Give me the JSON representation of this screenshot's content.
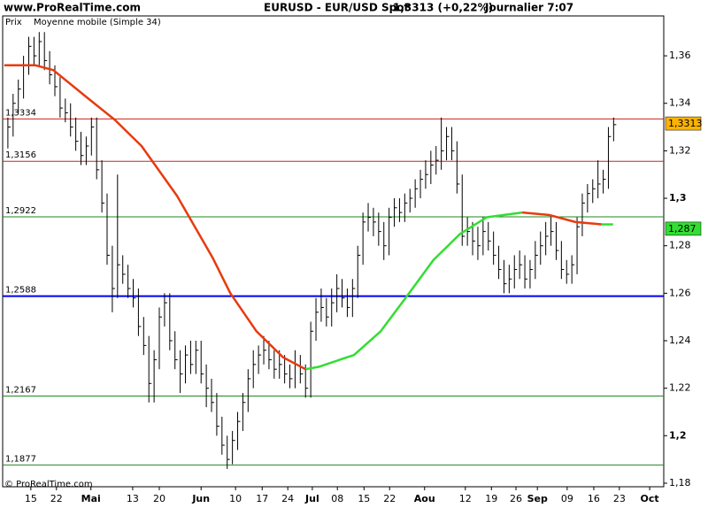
{
  "chart_data": {
    "type": "hlc",
    "site": "www.ProRealTime.com",
    "symbol": "EURUSD - EUR/USD Spot",
    "quote": "1,3313 (+0,22%)",
    "period": "Journalier  7:07",
    "price_label": "Prix",
    "copyright": "© ProRealTime.com",
    "color": "#000000",
    "x": [
      1,
      2,
      3,
      4,
      5,
      6,
      7,
      8,
      9,
      10,
      11,
      12,
      13,
      14,
      15,
      16,
      17,
      18,
      19,
      20,
      21,
      22,
      23,
      24,
      25,
      26,
      27,
      28,
      29,
      30,
      31,
      32,
      33,
      34,
      35,
      36,
      37,
      38,
      39,
      40,
      41,
      42,
      43,
      44,
      45,
      46,
      47,
      48,
      49,
      50,
      51,
      52,
      53,
      54,
      55,
      56,
      57,
      58,
      59,
      60,
      61,
      62,
      63,
      64,
      65,
      66,
      67,
      68,
      69,
      70,
      71,
      72,
      73,
      74,
      75,
      76,
      77,
      78,
      79,
      80,
      81,
      82,
      83,
      84,
      85,
      86,
      87,
      88,
      89,
      90,
      91,
      92,
      93,
      94,
      95,
      96,
      97,
      98,
      99,
      100,
      101,
      102,
      103,
      104,
      105,
      106,
      107,
      108,
      109,
      110,
      111,
      112,
      113,
      114,
      115,
      116,
      117
    ],
    "high": [
      1.334,
      1.344,
      1.35,
      1.36,
      1.368,
      1.368,
      1.37,
      1.37,
      1.362,
      1.356,
      1.351,
      1.342,
      1.34,
      1.334,
      1.328,
      1.326,
      1.334,
      1.334,
      1.316,
      1.302,
      1.28,
      1.31,
      1.276,
      1.272,
      1.266,
      1.262,
      1.25,
      1.242,
      1.236,
      1.254,
      1.26,
      1.26,
      1.244,
      1.236,
      1.238,
      1.24,
      1.24,
      1.24,
      1.23,
      1.224,
      1.218,
      1.208,
      1.2,
      1.202,
      1.21,
      1.218,
      1.228,
      1.236,
      1.238,
      1.242,
      1.24,
      1.236,
      1.236,
      1.234,
      1.23,
      1.236,
      1.234,
      1.23,
      1.248,
      1.258,
      1.262,
      1.258,
      1.262,
      1.268,
      1.266,
      1.262,
      1.266,
      1.28,
      1.294,
      1.298,
      1.296,
      1.294,
      1.29,
      1.296,
      1.3,
      1.3,
      1.302,
      1.304,
      1.308,
      1.312,
      1.316,
      1.32,
      1.322,
      1.334,
      1.33,
      1.33,
      1.324,
      1.31,
      1.292,
      1.29,
      1.288,
      1.292,
      1.29,
      1.286,
      1.28,
      1.274,
      1.272,
      1.276,
      1.278,
      1.276,
      1.274,
      1.282,
      1.286,
      1.29,
      1.292,
      1.29,
      1.282,
      1.274,
      1.276,
      1.292,
      1.302,
      1.306,
      1.308,
      1.316,
      1.312,
      1.33,
      1.334
    ],
    "low": [
      1.321,
      1.326,
      1.336,
      1.342,
      1.352,
      1.356,
      1.356,
      1.354,
      1.348,
      1.343,
      1.334,
      1.332,
      1.326,
      1.32,
      1.314,
      1.314,
      1.318,
      1.308,
      1.294,
      1.272,
      1.252,
      1.258,
      1.264,
      1.258,
      1.254,
      1.242,
      1.234,
      1.214,
      1.214,
      1.228,
      1.246,
      1.236,
      1.228,
      1.218,
      1.222,
      1.226,
      1.226,
      1.222,
      1.212,
      1.21,
      1.2,
      1.192,
      1.186,
      1.188,
      1.194,
      1.202,
      1.21,
      1.22,
      1.226,
      1.23,
      1.228,
      1.224,
      1.224,
      1.222,
      1.22,
      1.22,
      1.222,
      1.216,
      1.216,
      1.24,
      1.248,
      1.246,
      1.246,
      1.252,
      1.254,
      1.25,
      1.25,
      1.258,
      1.272,
      1.286,
      1.284,
      1.28,
      1.274,
      1.276,
      1.288,
      1.29,
      1.29,
      1.294,
      1.296,
      1.3,
      1.304,
      1.306,
      1.31,
      1.312,
      1.316,
      1.316,
      1.302,
      1.28,
      1.28,
      1.276,
      1.274,
      1.276,
      1.278,
      1.272,
      1.266,
      1.26,
      1.26,
      1.262,
      1.266,
      1.262,
      1.262,
      1.266,
      1.272,
      1.276,
      1.28,
      1.274,
      1.266,
      1.264,
      1.264,
      1.268,
      1.284,
      1.294,
      1.298,
      1.3,
      1.302,
      1.304,
      1.324
    ],
    "close": [
      1.33,
      1.34,
      1.346,
      1.356,
      1.364,
      1.36,
      1.366,
      1.358,
      1.352,
      1.347,
      1.338,
      1.336,
      1.33,
      1.324,
      1.318,
      1.322,
      1.33,
      1.312,
      1.298,
      1.276,
      1.262,
      1.272,
      1.268,
      1.262,
      1.258,
      1.246,
      1.238,
      1.222,
      1.232,
      1.25,
      1.256,
      1.24,
      1.232,
      1.226,
      1.234,
      1.23,
      1.236,
      1.226,
      1.22,
      1.214,
      1.204,
      1.196,
      1.19,
      1.198,
      1.206,
      1.214,
      1.224,
      1.23,
      1.234,
      1.236,
      1.232,
      1.228,
      1.23,
      1.226,
      1.224,
      1.23,
      1.226,
      1.22,
      1.244,
      1.252,
      1.254,
      1.25,
      1.256,
      1.262,
      1.258,
      1.254,
      1.262,
      1.276,
      1.29,
      1.292,
      1.29,
      1.286,
      1.28,
      1.292,
      1.296,
      1.294,
      1.298,
      1.3,
      1.304,
      1.308,
      1.31,
      1.314,
      1.316,
      1.32,
      1.326,
      1.32,
      1.306,
      1.284,
      1.286,
      1.282,
      1.28,
      1.286,
      1.282,
      1.276,
      1.27,
      1.264,
      1.266,
      1.27,
      1.272,
      1.266,
      1.27,
      1.276,
      1.28,
      1.284,
      1.286,
      1.278,
      1.27,
      1.268,
      1.272,
      1.288,
      1.298,
      1.302,
      1.304,
      1.306,
      1.308,
      1.326,
      1.331
    ],
    "ma": {
      "name": "Moyenne mobile (Simple 34)",
      "name_color": "#33dd33",
      "x": [
        0.3,
        6.3,
        9.7,
        16.4,
        21.5,
        26.6,
        33.4,
        40.2,
        43.6,
        48.6,
        53.7,
        58,
        60.5,
        67.3,
        72.4,
        77.5,
        82.5,
        87.6,
        92.7,
        99.5,
        104.6,
        109.7,
        114.7,
        116.9
      ],
      "values": [
        1.356,
        1.356,
        1.354,
        1.342,
        1.333,
        1.322,
        1.301,
        1.275,
        1.26,
        1.244,
        1.233,
        1.228,
        1.229,
        1.234,
        1.244,
        1.259,
        1.274,
        1.285,
        1.292,
        1.294,
        1.293,
        1.29,
        1.289,
        1.289
      ],
      "colors": [
        "#e83a0e",
        "#e83a0e",
        "#e83a0e",
        "#e83a0e",
        "#e83a0e",
        "#e83a0e",
        "#e83a0e",
        "#e83a0e",
        "#e83a0e",
        "#e83a0e",
        "#e83a0e",
        "#33dd33",
        "#33dd33",
        "#33dd33",
        "#33dd33",
        "#33dd33",
        "#33dd33",
        "#33dd33",
        "#33dd33",
        "#e83a0e",
        "#e83a0e",
        "#e83a0e",
        "#33dd33",
        "#33dd33"
      ]
    },
    "hlines": [
      {
        "value": 1.3334,
        "label": "1,3334",
        "color": "#cc2222",
        "width": 1
      },
      {
        "value": 1.3156,
        "label": "1,3156",
        "color": "#cc2222",
        "width": 1
      },
      {
        "value": 1.2922,
        "label": "1,2922",
        "color": "#228822",
        "width": 1
      },
      {
        "value": 1.2588,
        "label": "1,2588",
        "color": "#0000ee",
        "width": 2
      },
      {
        "value": 1.2167,
        "label": "1,2167",
        "color": "#228822",
        "width": 1
      },
      {
        "value": 1.1877,
        "label": "1,1877",
        "color": "#228822",
        "width": 1
      }
    ],
    "last_price": {
      "value": 1.3313,
      "label": "1,3313",
      "color": "#ffb300"
    },
    "ma_last": {
      "value": 1.287,
      "label": "1,287",
      "color": "#33dd33"
    },
    "xlim": [
      0,
      126.6
    ],
    "xticks": [
      {
        "value": 5.4,
        "label": "15"
      },
      {
        "value": 10.3,
        "label": "22"
      },
      {
        "value": 16.9,
        "label": "Mai",
        "bold": true
      },
      {
        "value": 24.9,
        "label": "13"
      },
      {
        "value": 30,
        "label": "20"
      },
      {
        "value": 38,
        "label": "Jun",
        "bold": true
      },
      {
        "value": 44.6,
        "label": "10"
      },
      {
        "value": 49.7,
        "label": "17"
      },
      {
        "value": 54.6,
        "label": "24"
      },
      {
        "value": 59.3,
        "label": "Jul",
        "bold": true
      },
      {
        "value": 64.1,
        "label": "08"
      },
      {
        "value": 69.2,
        "label": "15"
      },
      {
        "value": 74.1,
        "label": "22"
      },
      {
        "value": 80.8,
        "label": "Aou",
        "bold": true
      },
      {
        "value": 88.6,
        "label": "12"
      },
      {
        "value": 93.6,
        "label": "19"
      },
      {
        "value": 98.3,
        "label": "26"
      },
      {
        "value": 102.4,
        "label": "Sep",
        "bold": true
      },
      {
        "value": 108.1,
        "label": "09"
      },
      {
        "value": 113.2,
        "label": "16"
      },
      {
        "value": 118.1,
        "label": "23"
      },
      {
        "value": 123.9,
        "label": "Oct",
        "bold": true
      }
    ],
    "ylim": [
      1.1785,
      1.3768
    ],
    "yticks": [
      {
        "value": 1.36,
        "label": "1,36"
      },
      {
        "value": 1.34,
        "label": "1,34"
      },
      {
        "value": 1.32,
        "label": "1,32"
      },
      {
        "value": 1.3,
        "label": "1,3",
        "bold": true
      },
      {
        "value": 1.28,
        "label": "1,28"
      },
      {
        "value": 1.26,
        "label": "1,26"
      },
      {
        "value": 1.24,
        "label": "1,24"
      },
      {
        "value": 1.22,
        "label": "1,22"
      },
      {
        "value": 1.2,
        "label": "1,2",
        "bold": true
      },
      {
        "value": 1.18,
        "label": "1,18"
      }
    ]
  }
}
